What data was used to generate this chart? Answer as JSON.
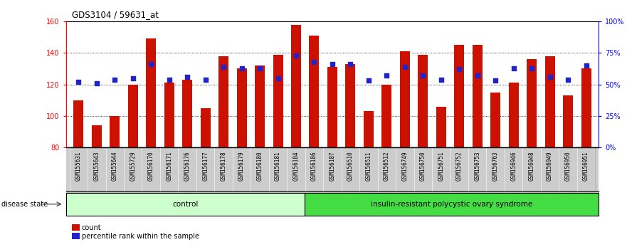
{
  "title": "GDS3104 / 59631_at",
  "samples": [
    "GSM155631",
    "GSM155643",
    "GSM155644",
    "GSM155729",
    "GSM156170",
    "GSM156171",
    "GSM156176",
    "GSM156177",
    "GSM156178",
    "GSM156179",
    "GSM156180",
    "GSM156181",
    "GSM156184",
    "GSM156186",
    "GSM156187",
    "GSM156510",
    "GSM156511",
    "GSM156512",
    "GSM156749",
    "GSM156750",
    "GSM156751",
    "GSM156752",
    "GSM156753",
    "GSM156763",
    "GSM156946",
    "GSM156948",
    "GSM156949",
    "GSM156950",
    "GSM156951"
  ],
  "count_values": [
    110,
    94,
    100,
    120,
    149,
    121,
    123,
    105,
    138,
    130,
    132,
    139,
    158,
    151,
    131,
    133,
    103,
    120,
    141,
    139,
    106,
    145,
    145,
    115,
    121,
    136,
    138,
    113,
    130
  ],
  "percentile_values": [
    52,
    51,
    54,
    55,
    66,
    54,
    56,
    54,
    64,
    63,
    63,
    55,
    73,
    68,
    66,
    66,
    53,
    57,
    64,
    57,
    54,
    62,
    57,
    53,
    63,
    63,
    56,
    54,
    65
  ],
  "control_count": 13,
  "disease_label": "insulin-resistant polycystic ovary syndrome",
  "control_label": "control",
  "disease_state_label": "disease state",
  "ymin": 80,
  "ymax": 160,
  "yticks": [
    80,
    100,
    120,
    140,
    160
  ],
  "right_yticks": [
    0,
    25,
    50,
    75,
    100
  ],
  "right_yticklabels": [
    "0%",
    "25%",
    "50%",
    "75%",
    "100%"
  ],
  "bar_color": "#cc1100",
  "percentile_color": "#2222cc",
  "control_bg": "#ccffcc",
  "disease_bg": "#44dd44",
  "tick_box_color": "#cccccc",
  "bar_width": 0.55,
  "legend_count_label": "count",
  "legend_percentile_label": "percentile rank within the sample"
}
